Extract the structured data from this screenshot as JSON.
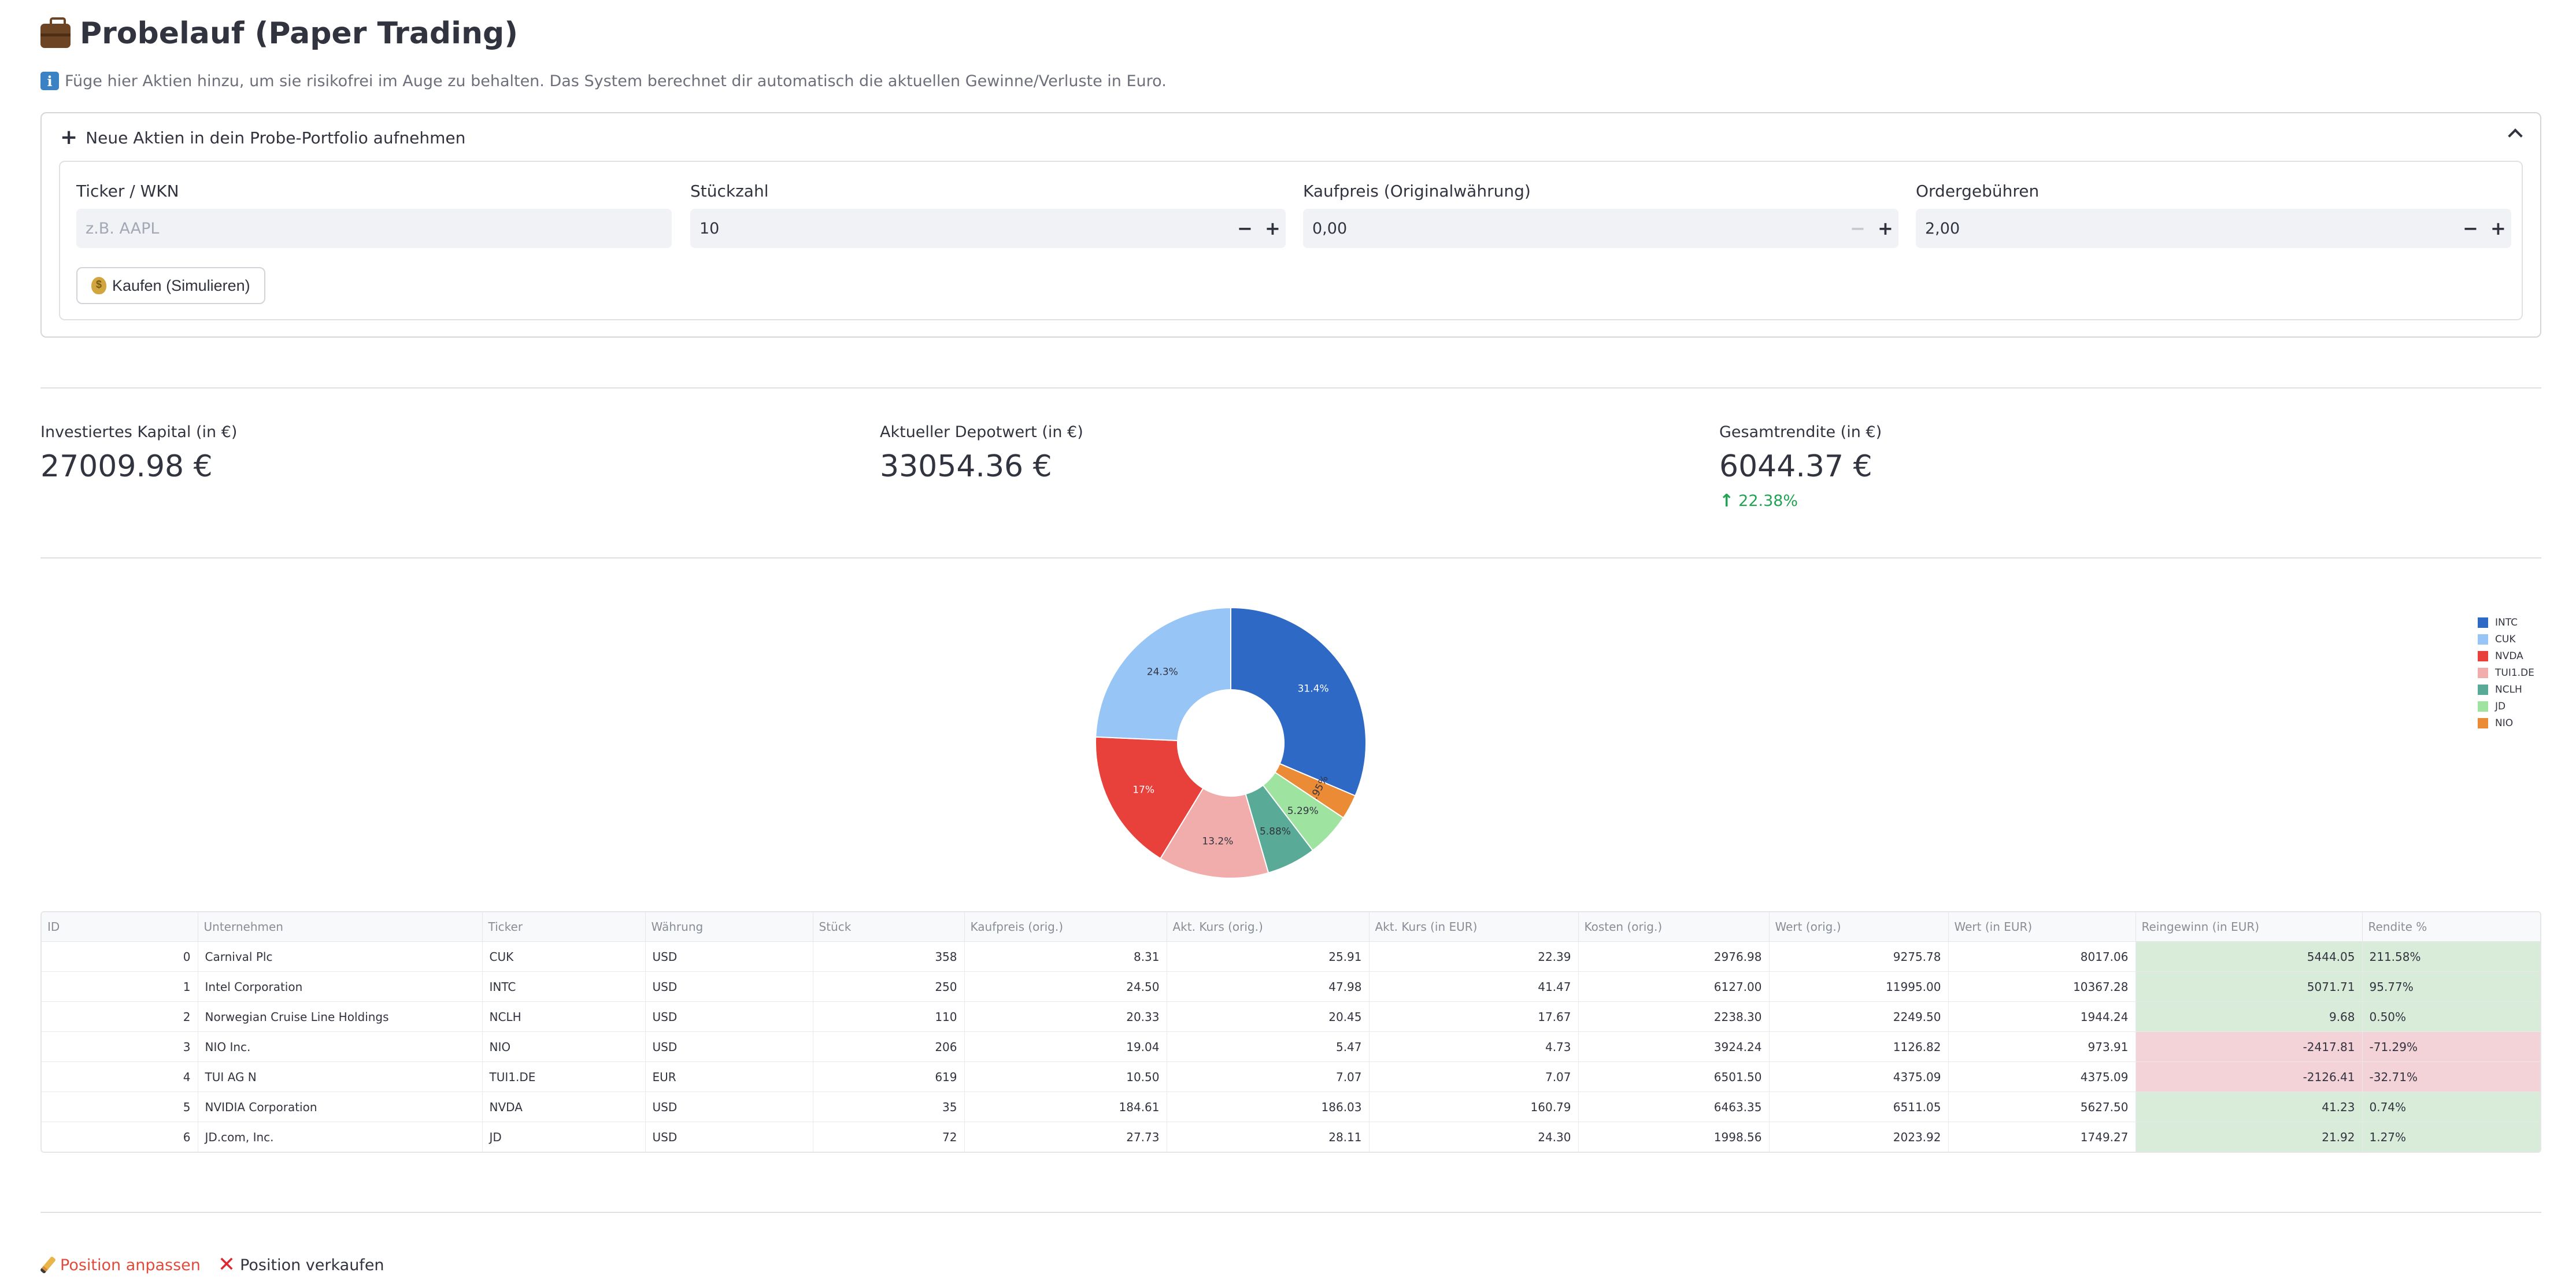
{
  "header": {
    "title": "Probelauf (Paper Trading)",
    "info": "Füge hier Aktien hinzu, um sie risikofrei im Auge zu behalten. Das System berechnet dir automatisch die aktuellen Gewinne/Verluste in Euro."
  },
  "expander": {
    "label": "Neue Aktien in dein Probe-Portfolio aufnehmen",
    "fields": {
      "ticker": {
        "label": "Ticker / WKN",
        "placeholder": "z.B. AAPL"
      },
      "qty": {
        "label": "Stückzahl",
        "value": "10"
      },
      "price": {
        "label": "Kaufpreis (Originalwährung)",
        "value": "0,00"
      },
      "fees": {
        "label": "Ordergebühren",
        "value": "2,00"
      }
    },
    "buy_label": "Kaufen (Simulieren)"
  },
  "metrics": {
    "invested": {
      "label": "Investiertes Kapital (in €)",
      "value": "27009.98 €"
    },
    "current": {
      "label": "Aktueller Depotwert (in €)",
      "value": "33054.36 €"
    },
    "total": {
      "label": "Gesamtrendite (in €)",
      "value": "6044.37 €",
      "delta": "22.38%"
    }
  },
  "chart_data": {
    "type": "pie",
    "hole": true,
    "legend_position": "top-right",
    "slices": [
      {
        "label": "INTC",
        "value": 31.4,
        "text": "31.4%",
        "color": "#2f69c6"
      },
      {
        "label": "NIO",
        "value": 2.95,
        "text": "2.95%",
        "color": "#ec8b36"
      },
      {
        "label": "JD",
        "value": 5.29,
        "text": "5.29%",
        "color": "#9fe3a1"
      },
      {
        "label": "NCLH",
        "value": 5.88,
        "text": "5.88%",
        "color": "#5aaa98"
      },
      {
        "label": "TUI1.DE",
        "value": 13.2,
        "text": "13.2%",
        "color": "#f1adac"
      },
      {
        "label": "NVDA",
        "value": 17.0,
        "text": "17%",
        "color": "#e8403a"
      },
      {
        "label": "CUK",
        "value": 24.3,
        "text": "24.3%",
        "color": "#96c5f6"
      }
    ],
    "legend": [
      {
        "label": "INTC",
        "color": "#2f69c6"
      },
      {
        "label": "CUK",
        "color": "#96c5f6"
      },
      {
        "label": "NVDA",
        "color": "#e8403a"
      },
      {
        "label": "TUI1.DE",
        "color": "#f1adac"
      },
      {
        "label": "NCLH",
        "color": "#5aaa98"
      },
      {
        "label": "JD",
        "color": "#9fe3a1"
      },
      {
        "label": "NIO",
        "color": "#ec8b36"
      }
    ]
  },
  "table": {
    "columns": [
      "ID",
      "Unternehmen",
      "Ticker",
      "Währung",
      "Stück",
      "Kaufpreis (orig.)",
      "Akt. Kurs (orig.)",
      "Akt. Kurs (in EUR)",
      "Kosten (orig.)",
      "Wert (orig.)",
      "Wert (in EUR)",
      "Reingewinn (in EUR)",
      "Rendite %"
    ],
    "rows": [
      [
        "0",
        "Carnival Plc",
        "CUK",
        "USD",
        "358",
        "8.31",
        "25.91",
        "22.39",
        "2976.98",
        "9275.78",
        "8017.06",
        "5444.05",
        "211.58%"
      ],
      [
        "1",
        "Intel Corporation",
        "INTC",
        "USD",
        "250",
        "24.50",
        "47.98",
        "41.47",
        "6127.00",
        "11995.00",
        "10367.28",
        "5071.71",
        "95.77%"
      ],
      [
        "2",
        "Norwegian Cruise Line Holdings",
        "NCLH",
        "USD",
        "110",
        "20.33",
        "20.45",
        "17.67",
        "2238.30",
        "2249.50",
        "1944.24",
        "9.68",
        "0.50%"
      ],
      [
        "3",
        "NIO Inc.",
        "NIO",
        "USD",
        "206",
        "19.04",
        "5.47",
        "4.73",
        "3924.24",
        "1126.82",
        "973.91",
        "-2417.81",
        "-71.29%"
      ],
      [
        "4",
        "TUI AG                  N",
        "TUI1.DE",
        "EUR",
        "619",
        "10.50",
        "7.07",
        "7.07",
        "6501.50",
        "4375.09",
        "4375.09",
        "-2126.41",
        "-32.71%"
      ],
      [
        "5",
        "NVIDIA Corporation",
        "NVDA",
        "USD",
        "35",
        "184.61",
        "186.03",
        "160.79",
        "6463.35",
        "6511.05",
        "5627.50",
        "41.23",
        "0.74%"
      ],
      [
        "6",
        "JD.com, Inc.",
        "JD",
        "USD",
        "72",
        "27.73",
        "28.11",
        "24.30",
        "1998.56",
        "2023.92",
        "1749.27",
        "21.92",
        "1.27%"
      ]
    ]
  },
  "actions": {
    "edit": "Position anpassen",
    "sell": "Position verkaufen"
  }
}
